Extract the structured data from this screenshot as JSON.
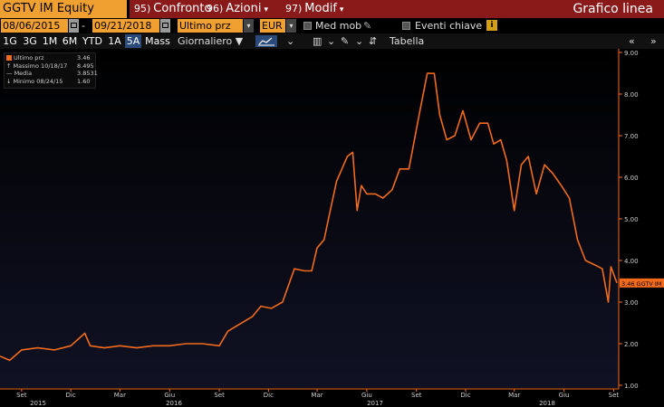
{
  "toolbar": {
    "security": "GGTV IM Equity",
    "menu_confronto_num": "95)",
    "menu_confronto": "Confronto",
    "menu_azioni_num": "96)",
    "menu_azioni": "Azioni",
    "menu_modif_num": "97)",
    "menu_modif": "Modif",
    "chart_title": "Grafico linea"
  },
  "controls": {
    "start_date": "08/06/2015",
    "separator": "-",
    "end_date": "09/21/2018",
    "field": "Ultimo prz",
    "currency": "EUR",
    "med_mob": "Med mob",
    "eventi": "Eventi chiave"
  },
  "periods": [
    "1G",
    "3G",
    "1M",
    "6M",
    "YTD",
    "1A",
    "5A",
    "Mass"
  ],
  "selected_period": "5A",
  "frequency": "Giornaliero",
  "table_label": "Tabella",
  "legend": {
    "last_label": "Ultimo prz",
    "last_value": "3.46",
    "max_label": "Massimo 10/18/17",
    "max_value": "8.495",
    "avg_label": "Media",
    "avg_value": "3.8531",
    "min_label": "Minimo 08/24/15",
    "min_value": "1.60"
  },
  "colors": {
    "line": "#f26b1d",
    "accent": "#f0a030",
    "header_red": "#8a1a1a",
    "background": "#000000",
    "selected_period": "#2a4a7a"
  },
  "chart_data": {
    "type": "line",
    "title": "",
    "xlabel": "",
    "ylabel": "",
    "ylim": [
      1.0,
      9.0
    ],
    "y_ticks": [
      "1.00",
      "2.00",
      "3.00",
      "4.00",
      "5.00",
      "6.00",
      "7.00",
      "8.00",
      "9.00"
    ],
    "x_tick_labels": [
      "Set",
      "Dic",
      "Mar",
      "Giu",
      "Set",
      "Dic",
      "Mar",
      "Giu",
      "Set",
      "Dic",
      "Mar",
      "Giu",
      "Set"
    ],
    "year_labels": [
      "2015",
      "2016",
      "2017",
      "2018"
    ],
    "grid": false,
    "price_tag": "3.46 GGTV IM",
    "series": [
      {
        "name": "GGTV IM Equity",
        "x": [
          "2015-08-06",
          "2015-08-24",
          "2015-09-15",
          "2015-10-15",
          "2015-11-15",
          "2015-12-15",
          "2016-01-10",
          "2016-01-20",
          "2016-02-15",
          "2016-03-15",
          "2016-04-15",
          "2016-05-15",
          "2016-06-15",
          "2016-07-15",
          "2016-08-15",
          "2016-09-15",
          "2016-10-01",
          "2016-10-20",
          "2016-11-15",
          "2016-12-01",
          "2016-12-20",
          "2017-01-10",
          "2017-02-01",
          "2017-02-20",
          "2017-03-05",
          "2017-03-15",
          "2017-03-28",
          "2017-04-05",
          "2017-04-20",
          "2017-05-10",
          "2017-05-20",
          "2017-05-28",
          "2017-06-05",
          "2017-06-15",
          "2017-07-01",
          "2017-07-15",
          "2017-08-01",
          "2017-08-15",
          "2017-09-01",
          "2017-09-20",
          "2017-10-05",
          "2017-10-18",
          "2017-10-28",
          "2017-11-10",
          "2017-11-25",
          "2017-12-10",
          "2017-12-25",
          "2018-01-10",
          "2018-01-25",
          "2018-02-05",
          "2018-02-18",
          "2018-03-01",
          "2018-03-15",
          "2018-03-28",
          "2018-04-10",
          "2018-04-25",
          "2018-05-10",
          "2018-05-25",
          "2018-06-10",
          "2018-06-25",
          "2018-07-10",
          "2018-07-25",
          "2018-08-10",
          "2018-08-25",
          "2018-09-05",
          "2018-09-10",
          "2018-09-21"
        ],
        "y": [
          1.7,
          1.6,
          1.85,
          1.9,
          1.85,
          1.95,
          2.25,
          1.95,
          1.9,
          1.95,
          1.9,
          1.95,
          1.95,
          2.0,
          2.0,
          1.95,
          2.3,
          2.45,
          2.65,
          2.9,
          2.85,
          3.0,
          3.8,
          3.75,
          3.75,
          4.3,
          4.5,
          5.0,
          5.9,
          6.5,
          6.6,
          5.2,
          5.8,
          5.6,
          5.6,
          5.5,
          5.7,
          6.2,
          6.2,
          7.5,
          8.5,
          8.495,
          7.5,
          6.9,
          7.0,
          7.6,
          6.9,
          7.3,
          7.3,
          6.8,
          6.9,
          6.4,
          5.2,
          6.3,
          6.5,
          5.6,
          6.3,
          6.1,
          5.8,
          5.5,
          4.5,
          4.0,
          3.9,
          3.8,
          3.0,
          3.85,
          3.46
        ]
      }
    ]
  }
}
